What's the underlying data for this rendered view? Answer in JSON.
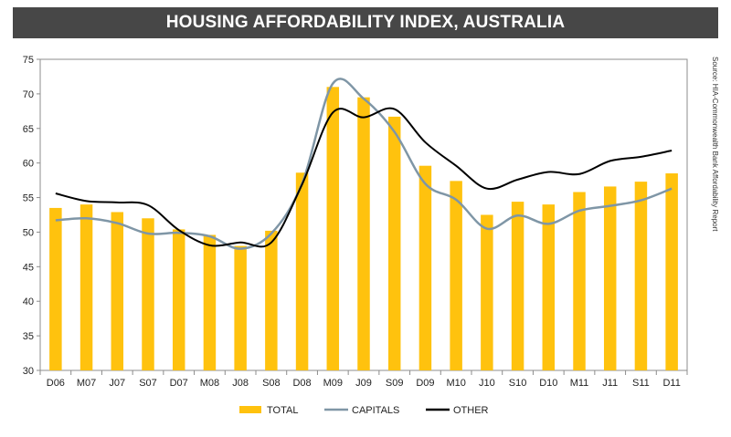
{
  "chart_data": {
    "type": "bar",
    "title": "HOUSING AFFORDABILITY INDEX, AUSTRALIA",
    "source": "Source: HIA-Commonwealth Bank Affordability Report",
    "categories": [
      "D06",
      "M07",
      "J07",
      "S07",
      "D07",
      "M08",
      "J08",
      "S08",
      "D08",
      "M09",
      "J09",
      "S09",
      "D09",
      "M10",
      "J10",
      "S10",
      "D10",
      "M11",
      "J11",
      "S11",
      "D11"
    ],
    "ylim": [
      30,
      75
    ],
    "yticks": [
      30,
      35,
      40,
      45,
      50,
      55,
      60,
      65,
      70,
      75
    ],
    "grid": false,
    "legend_position": "bottom",
    "series": [
      {
        "name": "TOTAL",
        "kind": "bar",
        "color": "#FFC20E",
        "values": [
          53.5,
          54.0,
          52.9,
          52.0,
          50.4,
          49.6,
          48.0,
          50.2,
          58.6,
          71.0,
          69.5,
          66.7,
          59.6,
          57.4,
          52.5,
          54.4,
          54.0,
          55.8,
          56.6,
          57.3,
          58.5
        ]
      },
      {
        "name": "CAPITALS",
        "kind": "line",
        "color": "#7F96A6",
        "values": [
          51.7,
          52.0,
          51.3,
          49.8,
          49.9,
          49.4,
          47.6,
          49.8,
          57.0,
          71.5,
          69.3,
          64.5,
          57.0,
          54.7,
          50.5,
          52.4,
          51.2,
          53.1,
          53.8,
          54.6,
          56.3
        ]
      },
      {
        "name": "OTHER",
        "kind": "line",
        "color": "#000000",
        "values": [
          55.6,
          54.5,
          54.3,
          53.9,
          50.3,
          48.1,
          48.5,
          48.5,
          56.9,
          67.3,
          66.6,
          67.8,
          63.0,
          59.6,
          56.3,
          57.6,
          58.7,
          58.4,
          60.3,
          60.9,
          61.8
        ]
      }
    ]
  }
}
